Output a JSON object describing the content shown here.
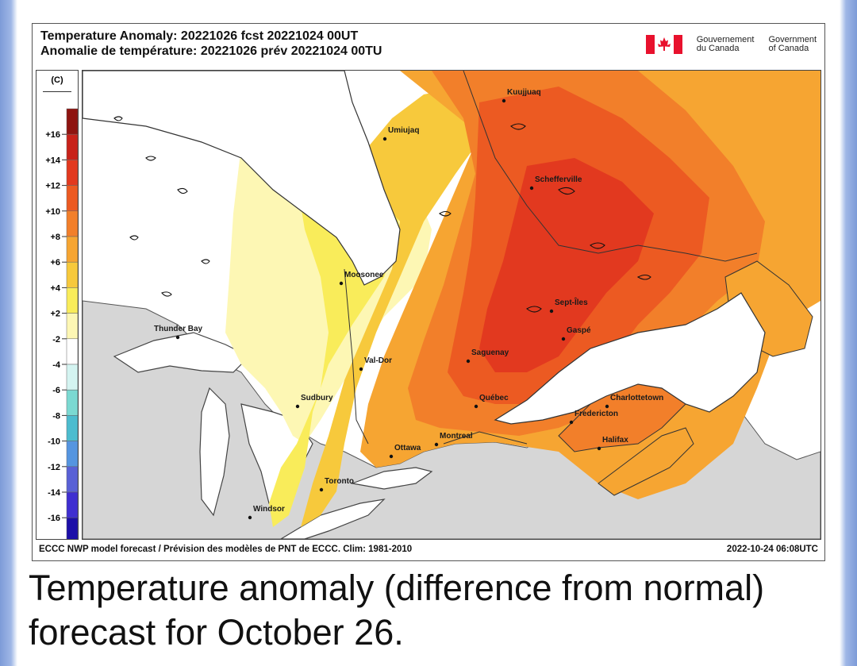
{
  "header": {
    "title_en": "Temperature Anomaly: 20221026 fcst 20221024 00UT",
    "title_fr": "Anomalie de température: 20221026 prév 20221024 00TU"
  },
  "brand": {
    "fr_line1": "Gouvernement",
    "fr_line2": "du Canada",
    "en_line1": "Government",
    "en_line2": "of Canada",
    "flag_color": "#e8112d"
  },
  "legend": {
    "unit": "(C)",
    "labels": [
      "+16",
      "+14",
      "+12",
      "+10",
      "+8",
      "+6",
      "+4",
      "+2",
      "-2",
      "-4",
      "-6",
      "-8",
      "-10",
      "-12",
      "-14",
      "-16"
    ],
    "colors": [
      "#8e1410",
      "#c8221a",
      "#e2391f",
      "#ec5a22",
      "#f27f2a",
      "#f6a532",
      "#f7c93c",
      "#f9ec5a",
      "#fdf7b4",
      "#ffffff",
      "#d4f4f1",
      "#7bd9d2",
      "#4cbccf",
      "#5595e0",
      "#5961d6",
      "#3f2fd1",
      "#1c0fa8"
    ]
  },
  "map": {
    "cities": [
      "Kuujjuaq",
      "Umiujaq",
      "Schefferville",
      "Moosonee",
      "Sept-Îles",
      "Gaspé",
      "Thunder Bay",
      "Val-Dor",
      "Saguenay",
      "Sudbury",
      "Québec",
      "Charlottetown",
      "Fredericton",
      "Montreal",
      "Ottawa",
      "Halifax",
      "Toronto",
      "Windsor"
    ],
    "colors": {
      "land_outside": "#d6d6d6",
      "water": "#ffffff",
      "white_zone": "#ffffff",
      "light_yellow": "#fdf7b4",
      "yellow": "#f9ec5a",
      "gold": "#f7c93c",
      "orange_light": "#f6a532",
      "orange": "#f27f2a",
      "orange_dark": "#ec5a22",
      "red": "#e2391f"
    }
  },
  "footer": {
    "left": "ECCC NWP model forecast / Prévision des modèles de PNT de ECCC. Clim: 1981-2010",
    "right": "2022-10-24 06:08UTC"
  },
  "caption": "Temperature anomaly (difference from normal) forecast for October 26."
}
